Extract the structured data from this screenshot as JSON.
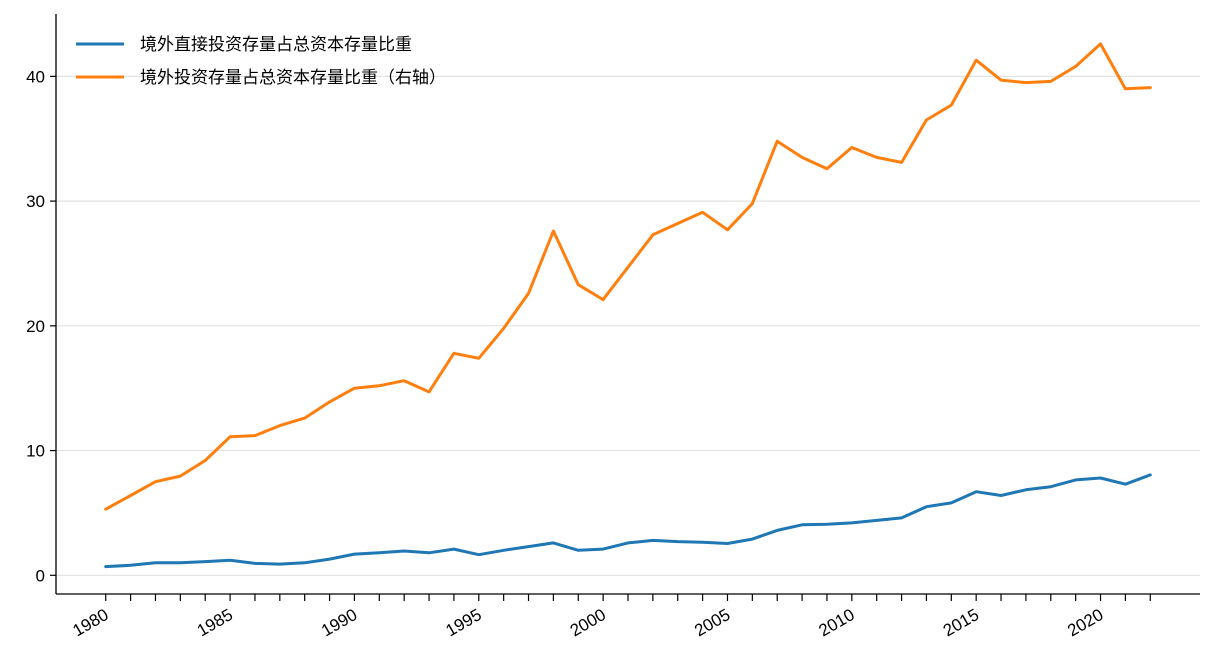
{
  "chart_data": {
    "type": "line",
    "title": "",
    "xlabel": "",
    "ylabel": "",
    "ylim": [
      -1.5,
      45
    ],
    "xlim": [
      1978,
      2024
    ],
    "grid": "horizontal",
    "legend_position": "top-left",
    "yticks": [
      0,
      10,
      20,
      30,
      40
    ],
    "xticks_labeled": [
      1980,
      1985,
      1990,
      1995,
      2000,
      2005,
      2010,
      2015,
      2020
    ],
    "x": [
      1980,
      1981,
      1982,
      1983,
      1984,
      1985,
      1986,
      1987,
      1988,
      1989,
      1990,
      1991,
      1992,
      1993,
      1994,
      1995,
      1996,
      1997,
      1998,
      1999,
      2000,
      2001,
      2002,
      2003,
      2004,
      2005,
      2006,
      2007,
      2008,
      2009,
      2010,
      2011,
      2012,
      2013,
      2014,
      2015,
      2016,
      2017,
      2018,
      2019,
      2020,
      2021,
      2022
    ],
    "series": [
      {
        "name": "境外直接投资存量占总资本存量比重",
        "color": "#1f77b4",
        "values": [
          0.7,
          0.8,
          1.0,
          1.0,
          1.1,
          1.2,
          0.95,
          0.9,
          1.0,
          1.3,
          1.7,
          1.8,
          1.95,
          1.8,
          2.1,
          1.65,
          2.0,
          2.3,
          2.6,
          2.0,
          2.1,
          2.6,
          2.8,
          2.7,
          2.65,
          2.55,
          2.9,
          3.6,
          4.05,
          4.1,
          4.2,
          4.4,
          4.6,
          5.5,
          5.8,
          6.7,
          6.4,
          6.85,
          7.1,
          7.65,
          7.8,
          7.3,
          8.05
        ]
      },
      {
        "name": "境外投资存量占总资本存量比重（右轴）",
        "color": "#ff7f0e",
        "values": [
          5.3,
          6.4,
          7.5,
          7.95,
          9.2,
          11.1,
          11.2,
          12.0,
          12.6,
          13.9,
          15.0,
          15.2,
          15.6,
          14.7,
          17.8,
          17.4,
          19.8,
          22.6,
          27.6,
          23.3,
          22.1,
          24.7,
          27.3,
          28.2,
          29.1,
          27.7,
          29.8,
          34.8,
          33.5,
          32.6,
          34.3,
          33.5,
          33.1,
          36.5,
          37.7,
          41.3,
          39.7,
          39.5,
          39.6,
          40.8,
          42.6,
          39.0,
          39.1
        ]
      }
    ]
  }
}
